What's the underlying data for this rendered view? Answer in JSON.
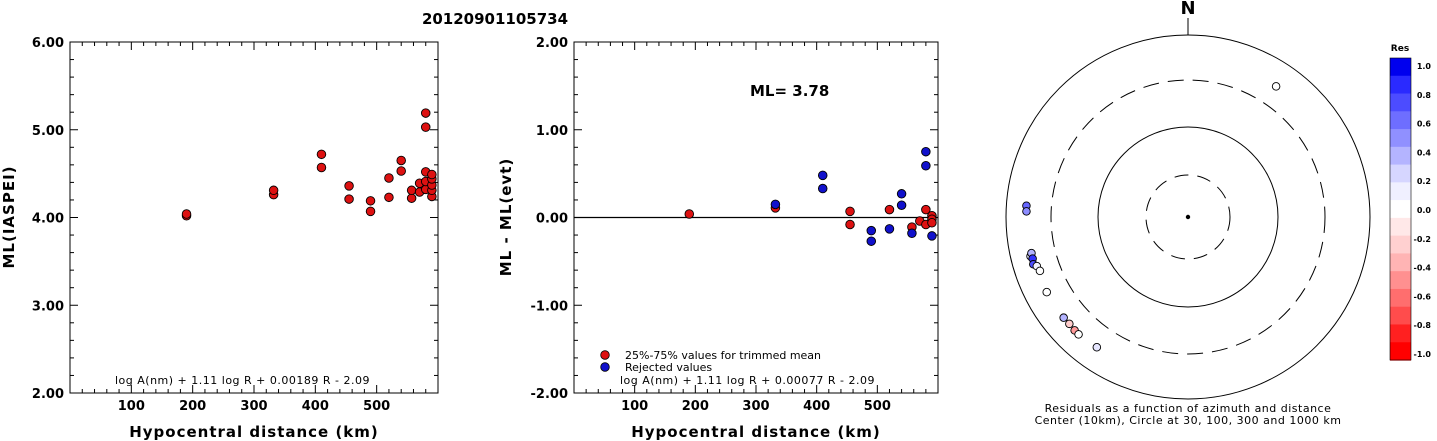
{
  "title": "20120901105734",
  "chart_data": [
    {
      "type": "scatter",
      "xlabel": "Hypocentral distance (km)",
      "ylabel": "ML(IASPEI)",
      "xlim": [
        0,
        600
      ],
      "ylim": [
        2.0,
        6.0
      ],
      "x_ticks": [
        "100",
        "200",
        "300",
        "400",
        "500"
      ],
      "y_ticks": [
        "2.00",
        "3.00",
        "4.00",
        "5.00",
        "6.00"
      ],
      "formula": "log A(nm) + 1.11 log R + 0.00189 R - 2.09",
      "series": [
        {
          "color": "#dd1111",
          "points": [
            [
              190,
              4.02
            ],
            [
              190,
              4.04
            ],
            [
              332,
              4.26
            ],
            [
              332,
              4.31
            ],
            [
              410,
              4.57
            ],
            [
              410,
              4.72
            ],
            [
              455,
              4.21
            ],
            [
              455,
              4.36
            ],
            [
              490,
              4.07
            ],
            [
              490,
              4.19
            ],
            [
              520,
              4.23
            ],
            [
              520,
              4.45
            ],
            [
              540,
              4.53
            ],
            [
              540,
              4.65
            ],
            [
              557,
              4.22
            ],
            [
              557,
              4.31
            ],
            [
              570,
              4.29
            ],
            [
              570,
              4.39
            ],
            [
              580,
              4.32
            ],
            [
              580,
              4.41
            ],
            [
              580,
              4.52
            ],
            [
              580,
              5.03
            ],
            [
              580,
              5.19
            ],
            [
              590,
              4.24
            ],
            [
              590,
              4.31
            ],
            [
              590,
              4.37
            ],
            [
              590,
              4.44
            ],
            [
              590,
              4.49
            ]
          ]
        }
      ]
    },
    {
      "type": "scatter",
      "xlabel": "Hypocentral distance (km)",
      "ylabel": "ML - ML(evt)",
      "xlim": [
        0,
        600
      ],
      "ylim": [
        -2.0,
        2.0
      ],
      "x_ticks": [
        "100",
        "200",
        "300",
        "400",
        "500"
      ],
      "y_ticks": [
        "-2.00",
        "-1.00",
        "0.00",
        "1.00",
        "2.00"
      ],
      "annotation": "ML= 3.78",
      "formula": "log A(nm) + 1.11 log R + 0.00077 R - 2.09",
      "legend": [
        "25%-75% values for trimmed mean",
        "Rejected values"
      ],
      "series": [
        {
          "name": "25%-75% values for trimmed mean",
          "color": "#dd1111",
          "points": [
            [
              190,
              0.04
            ],
            [
              332,
              0.11
            ],
            [
              455,
              0.07
            ],
            [
              455,
              -0.08
            ],
            [
              520,
              0.09
            ],
            [
              557,
              -0.11
            ],
            [
              570,
              -0.04
            ],
            [
              580,
              -0.08
            ],
            [
              580,
              0.09
            ],
            [
              590,
              0.02
            ],
            [
              590,
              -0.02
            ],
            [
              590,
              -0.06
            ]
          ]
        },
        {
          "name": "Rejected values",
          "color": "#1111cc",
          "points": [
            [
              332,
              0.15
            ],
            [
              410,
              0.33
            ],
            [
              410,
              0.48
            ],
            [
              490,
              -0.15
            ],
            [
              490,
              -0.27
            ],
            [
              520,
              -0.13
            ],
            [
              540,
              0.14
            ],
            [
              540,
              0.27
            ],
            [
              557,
              -0.18
            ],
            [
              580,
              0.59
            ],
            [
              580,
              0.75
            ],
            [
              590,
              -0.21
            ]
          ]
        }
      ]
    },
    {
      "type": "polar-scatter",
      "north_label": "N",
      "caption_lines": [
        "Residuals as a function of azimuth and distance",
        "Center (10km), Circle at 30, 100, 300 and 1000 km"
      ],
      "colorbar_title": "Res",
      "colorbar_ticks": [
        "1.0",
        "0.8",
        "0.6",
        "0.4",
        "0.2",
        "0.0",
        "-0.2",
        "-0.4",
        "-0.6",
        "-0.8",
        "-1.0"
      ],
      "colorbar_colors": [
        "#0000ee",
        "#2a2aff",
        "#4c4cff",
        "#6e6eff",
        "#9090ff",
        "#b4b4ff",
        "#d6d6ff",
        "#f0f0ff",
        "#ffffff",
        "#ffe8e8",
        "#ffd0d0",
        "#ffb4b4",
        "#ff9090",
        "#ff6e6e",
        "#ff4c4c",
        "#ff2020",
        "#ff0000"
      ],
      "stations": [
        {
          "azimuth_deg": 34,
          "distance_km": 520,
          "residual": 0.0
        },
        {
          "azimuth_deg": 274,
          "distance_km": 585,
          "residual": 0.6
        },
        {
          "azimuth_deg": 272,
          "distance_km": 580,
          "residual": 0.45
        },
        {
          "azimuth_deg": 256,
          "distance_km": 590,
          "residual": 0.1
        },
        {
          "azimuth_deg": 257,
          "distance_km": 565,
          "residual": 0.3
        },
        {
          "azimuth_deg": 255,
          "distance_km": 568,
          "residual": 0.8
        },
        {
          "azimuth_deg": 253,
          "distance_km": 582,
          "residual": 0.7
        },
        {
          "azimuth_deg": 252,
          "distance_km": 540,
          "residual": 0.05
        },
        {
          "azimuth_deg": 250,
          "distance_km": 520,
          "residual": 0.0
        },
        {
          "azimuth_deg": 242,
          "distance_km": 555,
          "residual": 0.0
        },
        {
          "azimuth_deg": 231,
          "distance_km": 555,
          "residual": 0.3
        },
        {
          "azimuth_deg": 228,
          "distance_km": 550,
          "residual": -0.2
        },
        {
          "azimuth_deg": 225,
          "distance_km": 560,
          "residual": -0.4
        },
        {
          "azimuth_deg": 223,
          "distance_km": 562,
          "residual": 0.0
        },
        {
          "azimuth_deg": 215,
          "distance_km": 540,
          "residual": 0.1
        }
      ]
    }
  ]
}
